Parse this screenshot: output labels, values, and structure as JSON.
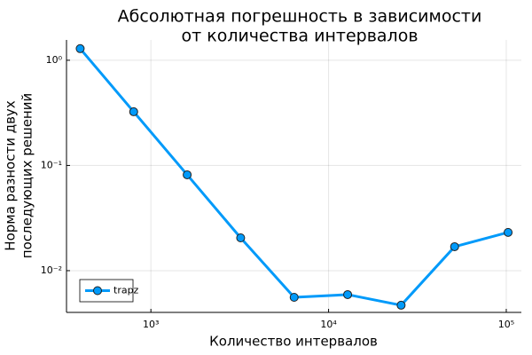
{
  "chart_data": {
    "type": "line",
    "title": [
      "Абсолютная погрешность в зависимости",
      "от количества интервалов"
    ],
    "x_label": "Количество интервалов",
    "y_label": [
      "Норма разности двух",
      "последующих решений"
    ],
    "x": [
      400,
      800,
      1600,
      3200,
      6400,
      12800,
      25600,
      51200,
      102400
    ],
    "series": [
      {
        "name": "trapz",
        "color": "#009afa",
        "values": [
          1.29,
          0.324,
          0.0815,
          0.0205,
          0.00558,
          0.00592,
          0.00469,
          0.0169,
          0.0231
        ]
      }
    ],
    "x_log": true,
    "y_log": true,
    "xlim": [
      335,
      121600
    ],
    "ylim": [
      0.00401,
      1.56
    ],
    "xticks": [
      {
        "value": 1000,
        "label": "10³"
      },
      {
        "value": 10000,
        "label": "10⁴"
      },
      {
        "value": 100000,
        "label": "10⁵"
      }
    ],
    "yticks": [
      {
        "value": 1,
        "label": "10⁰"
      },
      {
        "value": 0.1,
        "label": "10⁻¹"
      },
      {
        "value": 0.01,
        "label": "10⁻²"
      }
    ],
    "grid": true,
    "legend": "lower-left"
  }
}
